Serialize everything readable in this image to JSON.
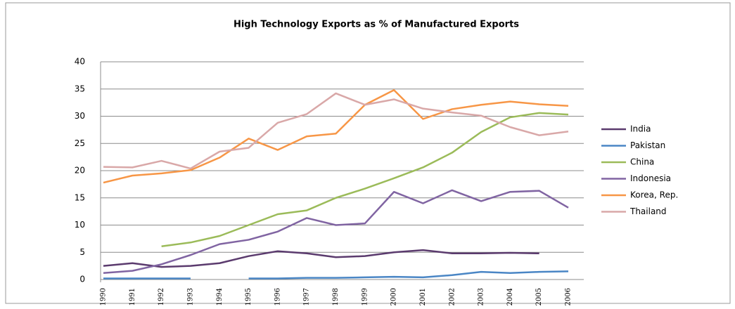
{
  "chart_data": {
    "type": "line",
    "title": "High Technology Exports as % of Manufactured Exports",
    "categories": [
      "1990",
      "1991",
      "1992",
      "1993",
      "1994",
      "1995",
      "1996",
      "1997",
      "1998",
      "1999",
      "2000",
      "2001",
      "2002",
      "2003",
      "2004",
      "2005",
      "2006"
    ],
    "series": [
      {
        "name": "India",
        "color": "#5b3b6e",
        "values": [
          2.5,
          3.0,
          2.3,
          2.5,
          3.0,
          4.3,
          5.2,
          4.8,
          4.1,
          4.3,
          5.0,
          5.4,
          4.8,
          4.8,
          4.9,
          4.8,
          null
        ]
      },
      {
        "name": "Pakistan",
        "color": "#4a86c5",
        "values": [
          0.2,
          0.2,
          0.2,
          0.2,
          null,
          0.2,
          0.2,
          0.3,
          0.3,
          0.4,
          0.5,
          0.4,
          0.8,
          1.4,
          1.2,
          1.4,
          1.5
        ]
      },
      {
        "name": "China",
        "color": "#9bbb59",
        "values": [
          null,
          null,
          6.1,
          6.8,
          8.0,
          10.0,
          12.0,
          12.7,
          15.0,
          16.7,
          18.6,
          20.6,
          23.3,
          27.1,
          29.8,
          30.6,
          30.3
        ]
      },
      {
        "name": "Indonesia",
        "color": "#8064a2",
        "values": [
          1.2,
          1.6,
          2.8,
          4.5,
          6.5,
          7.3,
          8.8,
          11.3,
          10.0,
          10.3,
          16.1,
          14.0,
          16.4,
          14.4,
          16.1,
          16.3,
          13.2
        ]
      },
      {
        "name": "Korea, Rep.",
        "color": "#f79646",
        "values": [
          17.8,
          19.1,
          19.5,
          20.1,
          22.4,
          25.9,
          23.8,
          26.3,
          26.8,
          32.1,
          34.8,
          29.5,
          31.3,
          32.1,
          32.7,
          32.2,
          31.9
        ]
      },
      {
        "name": "Thailand",
        "color": "#d9a8a8",
        "values": [
          20.7,
          20.6,
          21.8,
          20.4,
          23.5,
          24.2,
          28.8,
          30.4,
          34.2,
          32.1,
          33.1,
          31.4,
          30.7,
          30.1,
          28.0,
          26.5,
          27.2
        ]
      }
    ],
    "ylim": [
      0,
      40
    ],
    "yticks": [
      0,
      5,
      10,
      15,
      20,
      25,
      30,
      35,
      40
    ],
    "grid": true,
    "legend": "right"
  }
}
